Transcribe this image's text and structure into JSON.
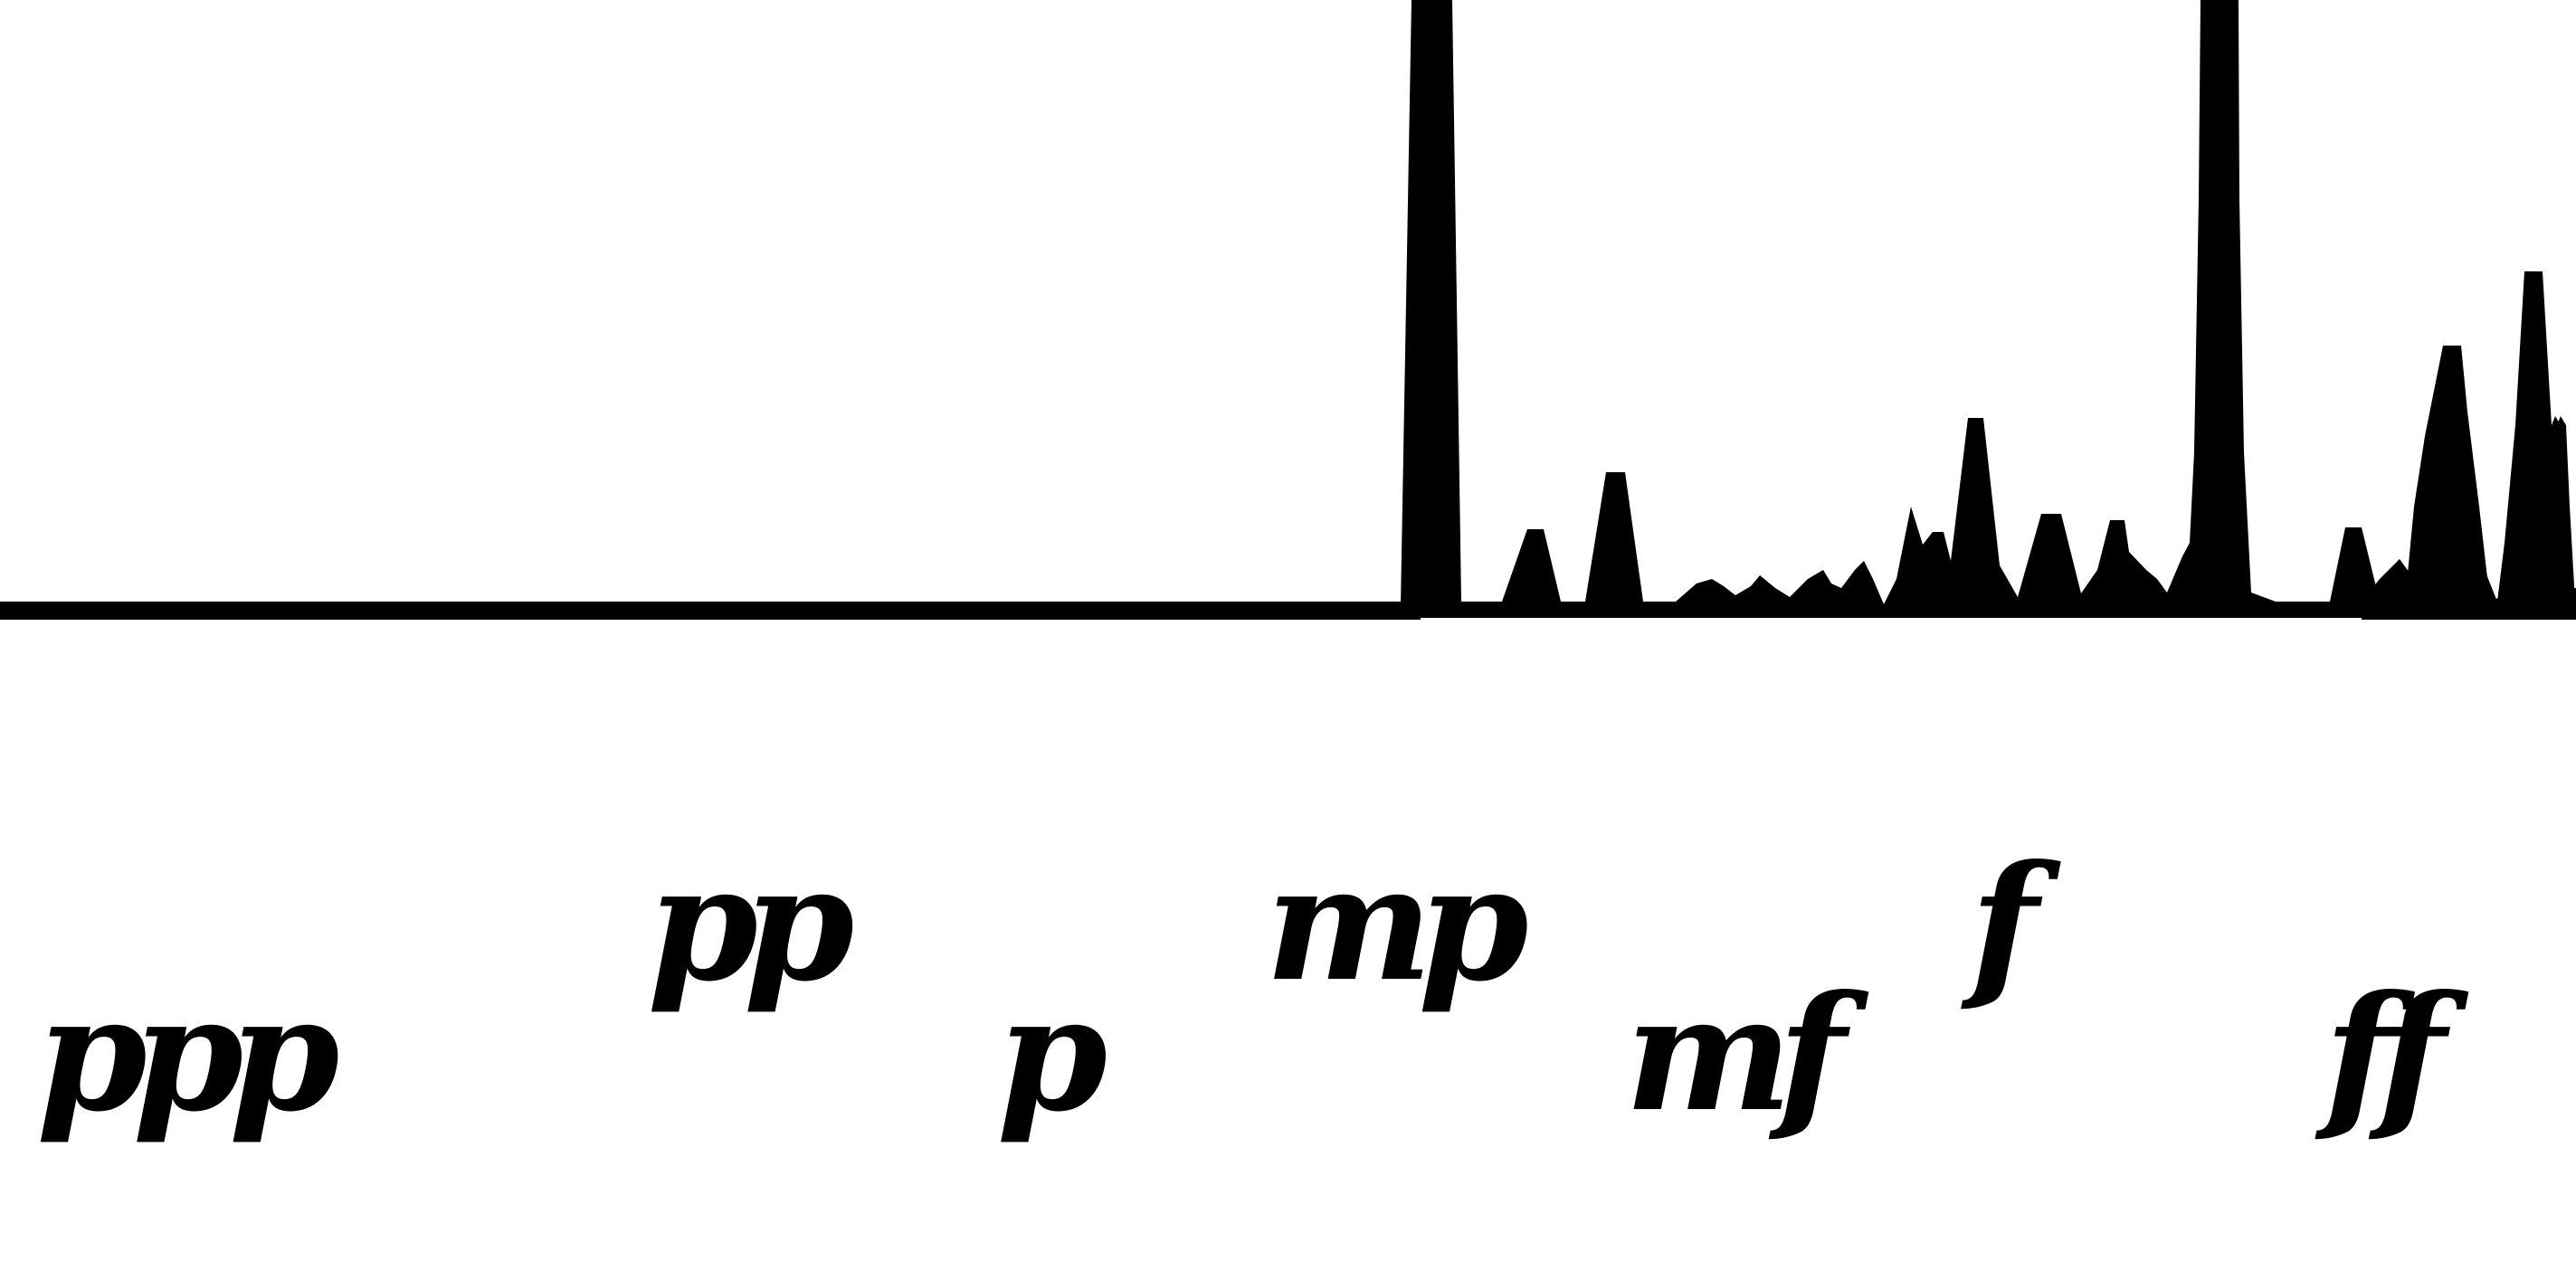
{
  "colors": {
    "ink": "#000000",
    "background": "#ffffff"
  },
  "dynamics": {
    "ppp": "ppp",
    "pp": "pp",
    "p": "p",
    "mp": "mp",
    "mf": "mf",
    "f": "f",
    "ff": "ff"
  }
}
